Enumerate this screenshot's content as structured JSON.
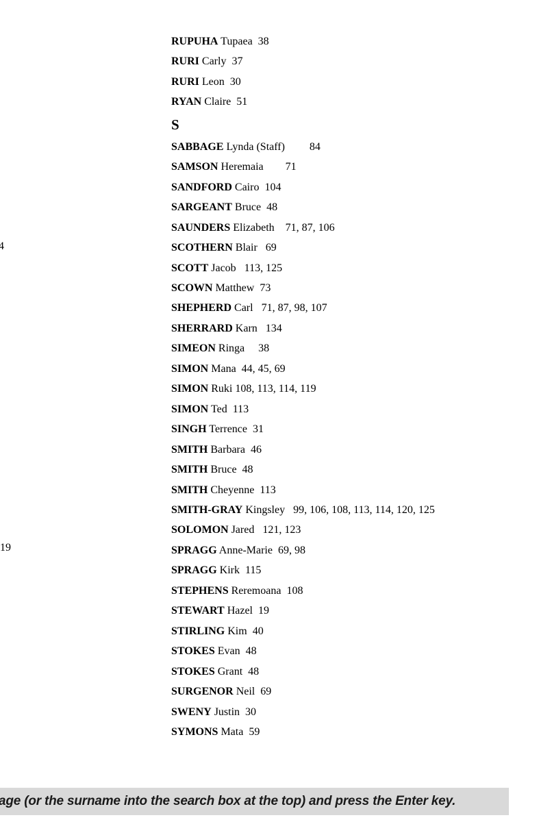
{
  "document": {
    "background": "#ffffff",
    "text_color": "#000000"
  },
  "index": {
    "rows": [
      {
        "type": "entry",
        "surname": "RUPUHA",
        "rest": "Tupaea  38"
      },
      {
        "type": "entry",
        "surname": "RURI",
        "rest": "Carly  37"
      },
      {
        "type": "entry",
        "surname": "RURI",
        "rest": "Leon  30"
      },
      {
        "type": "entry",
        "surname": "RYAN",
        "rest": "Claire  51"
      },
      {
        "type": "section",
        "label": "S"
      },
      {
        "type": "entry",
        "surname": "SABBAGE",
        "rest": "Lynda (Staff)         84"
      },
      {
        "type": "entry",
        "surname": "SAMSON",
        "rest": "Heremaia        71"
      },
      {
        "type": "entry",
        "surname": "SANDFORD",
        "rest": "Cairo  104"
      },
      {
        "type": "entry",
        "surname": "SARGEANT",
        "rest": "Bruce  48"
      },
      {
        "type": "entry",
        "surname": "SAUNDERS",
        "rest": "Elizabeth    71, 87, 106"
      },
      {
        "type": "entry",
        "surname": "SCOTHERN",
        "rest": "Blair   69"
      },
      {
        "type": "entry",
        "surname": "SCOTT",
        "rest": "Jacob   113, 125"
      },
      {
        "type": "entry",
        "surname": "SCOWN",
        "rest": "Matthew  73"
      },
      {
        "type": "entry",
        "surname": "SHEPHERD",
        "rest": "Carl   71, 87, 98, 107"
      },
      {
        "type": "entry",
        "surname": "SHERRARD",
        "rest": "Karn   134"
      },
      {
        "type": "entry",
        "surname": "SIMEON",
        "rest": "Ringa     38"
      },
      {
        "type": "entry",
        "surname": "SIMON",
        "rest": "Mana  44, 45, 69"
      },
      {
        "type": "entry",
        "surname": "SIMON",
        "rest": "Ruki 108, 113, 114, 119"
      },
      {
        "type": "entry",
        "surname": "SIMON",
        "rest": "Ted  113"
      },
      {
        "type": "entry",
        "surname": "SINGH",
        "rest": "Terrence  31"
      },
      {
        "type": "entry",
        "surname": "SMITH",
        "rest": "Barbara  46"
      },
      {
        "type": "entry",
        "surname": "SMITH",
        "rest": "Bruce  48"
      },
      {
        "type": "entry",
        "surname": "SMITH",
        "rest": "Cheyenne  113"
      },
      {
        "type": "entry",
        "surname": "SMITH-GRAY",
        "rest": "Kingsley   99, 106, 108, 113, 114, 120, 125"
      },
      {
        "type": "entry",
        "surname": "SOLOMON",
        "rest": "Jared   121, 123"
      },
      {
        "type": "entry",
        "surname": "SPRAGG",
        "rest": "Anne-Marie  69, 98"
      },
      {
        "type": "entry",
        "surname": "SPRAGG",
        "rest": "Kirk  115"
      },
      {
        "type": "entry",
        "surname": "STEPHENS",
        "rest": "Reremoana  108"
      },
      {
        "type": "entry",
        "surname": "STEWART",
        "rest": "Hazel  19"
      },
      {
        "type": "entry",
        "surname": "STIRLING",
        "rest": "Kim  40"
      },
      {
        "type": "entry",
        "surname": "STOKES",
        "rest": "Evan  48"
      },
      {
        "type": "entry",
        "surname": "STOKES",
        "rest": "Grant  48"
      },
      {
        "type": "entry",
        "surname": "SURGENOR",
        "rest": "Neil  69"
      },
      {
        "type": "entry",
        "surname": "SWENY",
        "rest": "Justin  30"
      },
      {
        "type": "entry",
        "surname": "SYMONS",
        "rest": "Mata  59"
      }
    ]
  },
  "edge_fragments": {
    "upper": "4",
    "lower": "19"
  },
  "footer": {
    "text": "age (or the surname into the search box at the top) and press the Enter key.",
    "background": "#d9d9d9",
    "text_color": "#1a1a1a"
  }
}
